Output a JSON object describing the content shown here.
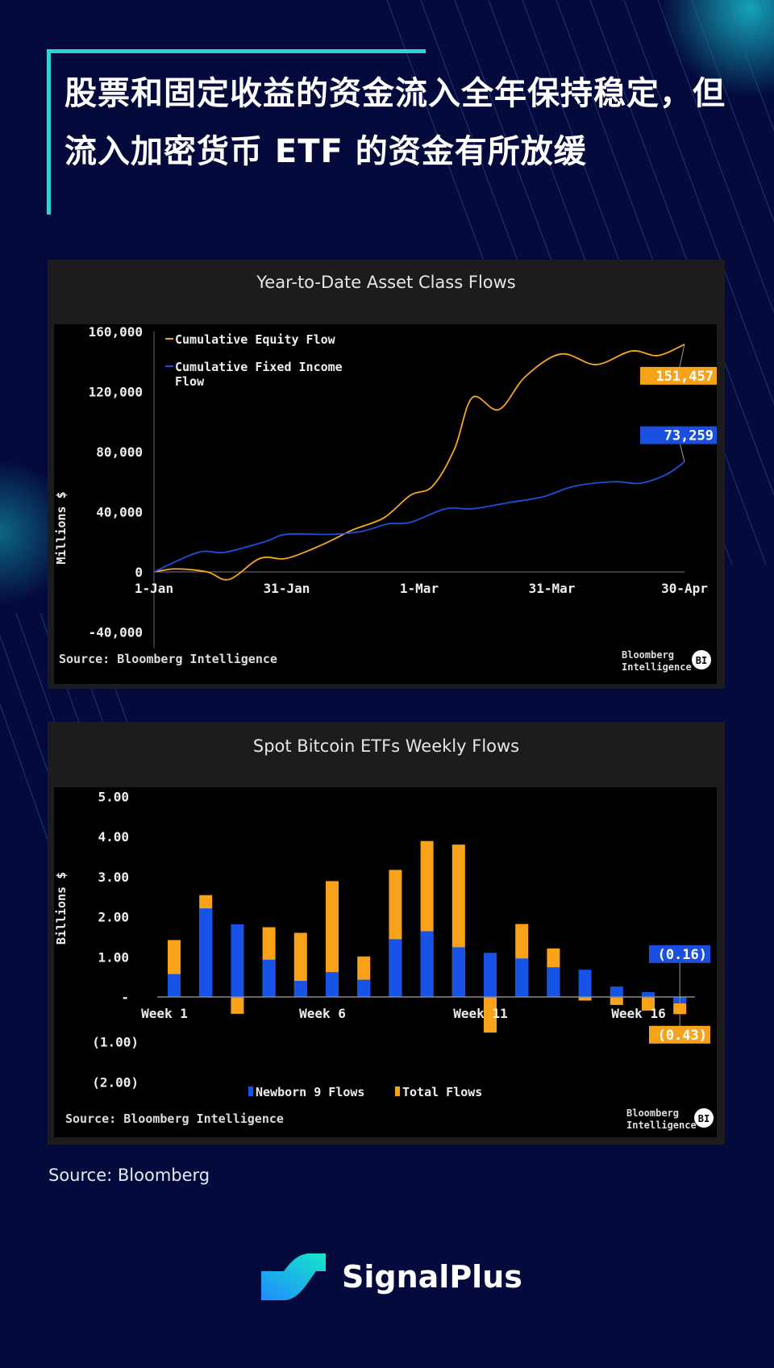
{
  "header": {
    "title": "股票和固定收益的资金流入全年保持稳定，但流入加密货币 ETF 的资金有所放缓"
  },
  "footer": {
    "source": "Source: Bloomberg",
    "brand": "SignalPlus"
  },
  "colors": {
    "background": "#040a3c",
    "accent": "#2fd3d0",
    "equity": "#f5a623",
    "fixed_income": "#1f4fd8",
    "newborn": "#1653e6",
    "total": "#f8a21a"
  },
  "chart_data": [
    {
      "type": "line",
      "title": "Year-to-Date Asset Class Flows",
      "ylabel": "Millions $",
      "ylim": [
        -40000,
        160000
      ],
      "yticks": [
        "160,000",
        "120,000",
        "80,000",
        "40,000",
        "0",
        "-40,000"
      ],
      "xticks": [
        "1-Jan",
        "31-Jan",
        "1-Mar",
        "31-Mar",
        "30-Apr"
      ],
      "source": "Source: Bloomberg Intelligence",
      "brand": "Bloomberg Intelligence",
      "brand_badge": "BI",
      "series": [
        {
          "name": "Cumulative Equity Flow",
          "end_label": "151,457",
          "x": [
            "1-Jan",
            "6-Jan",
            "13-Jan",
            "18-Jan",
            "25-Jan",
            "31-Jan",
            "8-Feb",
            "15-Feb",
            "22-Feb",
            "28-Feb",
            "4-Mar",
            "9-Mar",
            "13-Mar",
            "19-Mar",
            "25-Mar",
            "2-Apr",
            "10-Apr",
            "18-Apr",
            "24-Apr",
            "30-Apr"
          ],
          "y": [
            0,
            2000,
            0,
            -5000,
            9000,
            9000,
            18000,
            28000,
            36000,
            51000,
            57000,
            82000,
            116000,
            108000,
            130000,
            145000,
            138000,
            147000,
            144000,
            151457
          ]
        },
        {
          "name": "Cumulative Fixed Income Flow",
          "end_label": "73,259",
          "x": [
            "1-Jan",
            "11-Jan",
            "17-Jan",
            "26-Jan",
            "31-Jan",
            "10-Feb",
            "17-Feb",
            "23-Feb",
            "28-Feb",
            "7-Mar",
            "13-Mar",
            "21-Mar",
            "29-Mar",
            "5-Apr",
            "14-Apr",
            "20-Apr",
            "26-Apr",
            "30-Apr"
          ],
          "y": [
            0,
            13000,
            13000,
            20000,
            25000,
            25000,
            27000,
            32000,
            33000,
            42000,
            42000,
            46000,
            50000,
            57000,
            60000,
            59000,
            65000,
            73259
          ]
        }
      ]
    },
    {
      "type": "bar",
      "title": "Spot Bitcoin ETFs Weekly Flows",
      "ylabel": "Billions $",
      "ylim": [
        -2,
        5
      ],
      "yticks": [
        "5.00",
        "4.00",
        "3.00",
        "2.00",
        "1.00",
        "-",
        "(1.00)",
        "(2.00)"
      ],
      "categories": [
        "Week 1",
        "Week 2",
        "Week 3",
        "Week 4",
        "Week 5",
        "Week 6",
        "Week 7",
        "Week 8",
        "Week 9",
        "Week 10",
        "Week 11",
        "Week 12",
        "Week 13",
        "Week 14",
        "Week 15",
        "Week 16",
        "Week 17"
      ],
      "xtick_labels": [
        "Week 1",
        "Week 6",
        "Week 11",
        "Week 16"
      ],
      "source": "Source: Bloomberg Intelligence",
      "brand": "Bloomberg Intelligence",
      "brand_badge": "BI",
      "series": [
        {
          "name": "Newborn 9 Flows",
          "end_label": "(0.16)",
          "values": [
            0.57,
            2.21,
            1.81,
            0.93,
            0.4,
            0.62,
            0.43,
            1.44,
            1.64,
            1.24,
            1.1,
            0.96,
            0.74,
            0.68,
            0.26,
            0.12,
            -0.16
          ]
        },
        {
          "name": "Total Flows",
          "end_label": "(0.43)",
          "values": [
            1.42,
            2.54,
            -0.42,
            1.74,
            1.6,
            2.89,
            1.01,
            3.17,
            3.89,
            3.8,
            -0.89,
            1.82,
            1.21,
            -0.09,
            -0.2,
            -0.34,
            -0.43
          ]
        }
      ]
    }
  ]
}
